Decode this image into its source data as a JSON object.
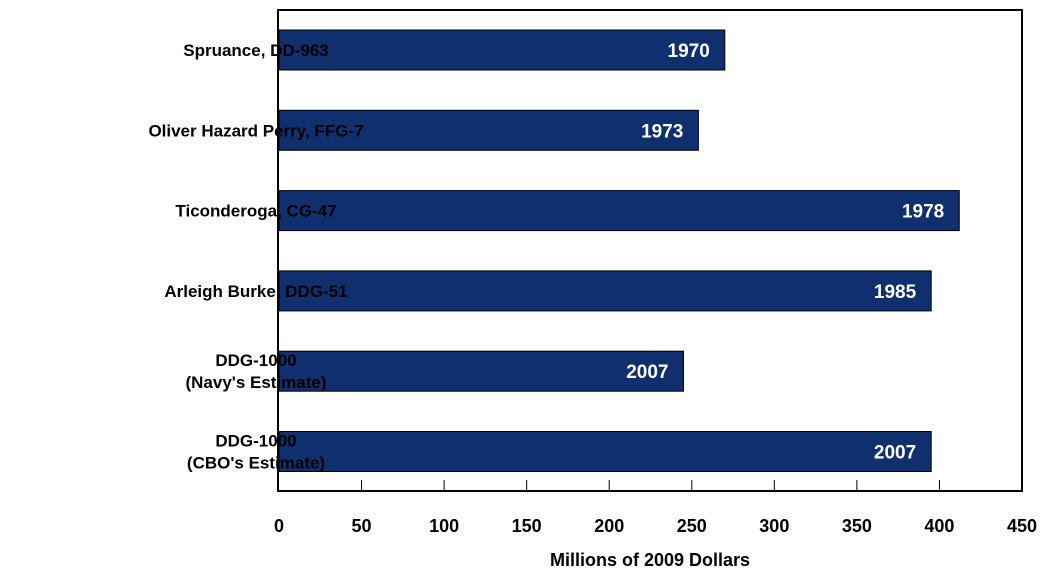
{
  "chart_data": {
    "type": "bar",
    "orientation": "horizontal",
    "categories": [
      [
        "Spruance, DD-963"
      ],
      [
        "Oliver Hazard Perry, FFG-7"
      ],
      [
        "Ticonderoga, CG-47"
      ],
      [
        "Arleigh Burke, DDG-51"
      ],
      [
        "DDG-1000",
        "(Navy's Estimate)"
      ],
      [
        "DDG-1000",
        "(CBO's Estimate)"
      ]
    ],
    "values": [
      270,
      254,
      412,
      395,
      245,
      395
    ],
    "data_labels": [
      "1970",
      "1973",
      "1978",
      "1985",
      "2007",
      "2007"
    ],
    "xlabel": "Millions of 2009 Dollars",
    "xlim": [
      0,
      450
    ],
    "xticks": [
      0,
      50,
      100,
      150,
      200,
      250,
      300,
      350,
      400,
      450
    ],
    "grid": false,
    "colors": {
      "bar_fill": "#0f2f6e",
      "bar_stroke": "#000000",
      "data_label": "#ffffff",
      "text": "#000000",
      "axis": "#000000"
    }
  }
}
